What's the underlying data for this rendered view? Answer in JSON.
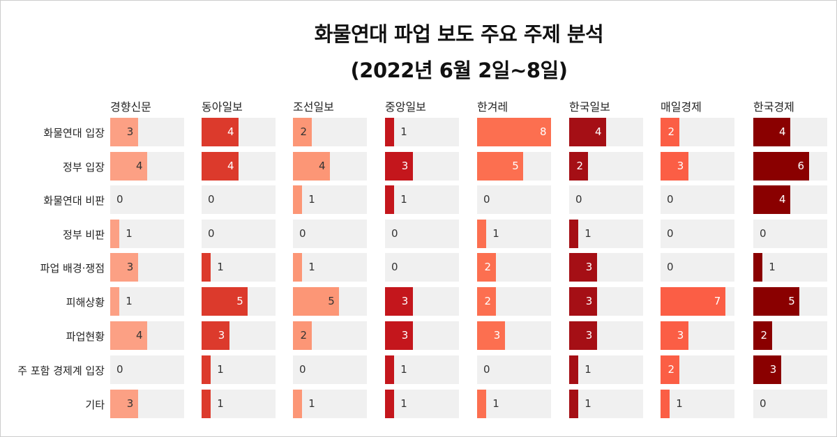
{
  "chart_data": {
    "type": "bar",
    "title": "화물연대 파업 보도 주요 주제 분석",
    "subtitle": "(2022년 6월 2일~8일)",
    "xlabel": "",
    "ylabel": "",
    "xlim": [
      0,
      8
    ],
    "categories": [
      "화물연대 입장",
      "정부 입장",
      "화물연대 비판",
      "정부 비판",
      "파업 배경·쟁점",
      "피해상황",
      "파업현황",
      "주 포함 경제계 입장",
      "기타"
    ],
    "series": [
      {
        "name": "경향신문",
        "color": "#fca084",
        "label_color": "#333333",
        "values": [
          3,
          4,
          0,
          1,
          3,
          1,
          4,
          0,
          3
        ]
      },
      {
        "name": "동아일보",
        "color": "#dc3a2c",
        "label_color": "#ffffff",
        "values": [
          4,
          4,
          0,
          0,
          1,
          5,
          3,
          1,
          1
        ]
      },
      {
        "name": "조선일보",
        "color": "#fc9676",
        "label_color": "#333333",
        "values": [
          2,
          4,
          1,
          0,
          1,
          5,
          2,
          0,
          1
        ]
      },
      {
        "name": "중앙일보",
        "color": "#c4161c",
        "label_color": "#ffffff",
        "values": [
          1,
          3,
          1,
          0,
          0,
          3,
          3,
          1,
          1
        ]
      },
      {
        "name": "한겨레",
        "color": "#fc6f50",
        "label_color": "#ffffff",
        "values": [
          8,
          5,
          0,
          1,
          2,
          2,
          3,
          0,
          1
        ]
      },
      {
        "name": "한국일보",
        "color": "#a50f15",
        "label_color": "#ffffff",
        "values": [
          4,
          2,
          0,
          1,
          3,
          3,
          3,
          1,
          1
        ]
      },
      {
        "name": "매일경제",
        "color": "#fb5e45",
        "label_color": "#ffffff",
        "values": [
          2,
          3,
          0,
          0,
          0,
          7,
          3,
          2,
          1
        ]
      },
      {
        "name": "한국경제",
        "color": "#8a0000",
        "label_color": "#ffffff",
        "values": [
          4,
          6,
          4,
          0,
          1,
          5,
          2,
          3,
          0
        ]
      }
    ]
  }
}
